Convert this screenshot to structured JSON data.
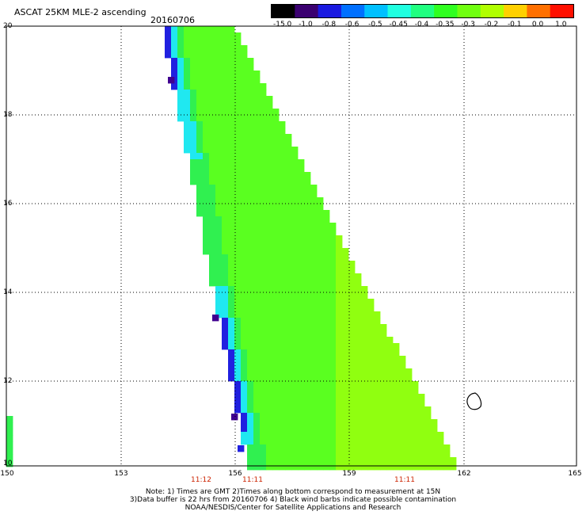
{
  "header": {
    "title": "ASCAT 25KM MLE-2 ascending",
    "date": "20160706"
  },
  "colorbar": {
    "labels": [
      "-15.0",
      "-1.0",
      "-0.8",
      "-0.6",
      "-0.5",
      "-0.45",
      "-0.4",
      "-0.35",
      "-0.3",
      "-0.2",
      "-0.1",
      "0.0",
      "1.0"
    ],
    "colors": [
      "#000000",
      "#3a0070",
      "#1a1ae0",
      "#0070ff",
      "#00c0ff",
      "#20ffe0",
      "#20ff80",
      "#30ff20",
      "#70ff10",
      "#b0ff00",
      "#ffd000",
      "#ff7000",
      "#ff1000"
    ]
  },
  "axes": {
    "lat_labels": [
      "20",
      "18",
      "16",
      "14",
      "12",
      "10"
    ],
    "lon_labels": [
      "150",
      "153",
      "156",
      "159",
      "162",
      "165"
    ]
  },
  "times": [
    "11:12",
    "11:11",
    "11:11"
  ],
  "notes": {
    "line1": "Note: 1) Times are GMT 2)Times along bottom correspond to measurement at 15N",
    "line2": "3)Data buffer is 22 hrs from 20160706 4) Black wind barbs indicate possible contamination",
    "line3": "NOAA/NESDIS/Center for Satellite Applications and Research"
  },
  "colors": {
    "swath_main": "#5aff20",
    "swath_east": "#90ff10",
    "swath_edge": "#30f050",
    "west_edge": "#20e8f0",
    "deep_edge": "#2020e0",
    "purple_cell": "#400090",
    "time_text": "#cc2200"
  }
}
